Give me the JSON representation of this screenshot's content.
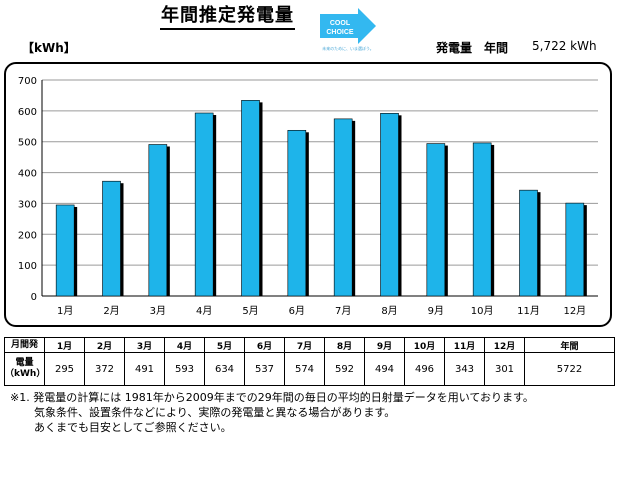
{
  "header": {
    "title": "年間推定発電量",
    "logo_line1": "COOL",
    "logo_line2": "CHOICE",
    "logo_caption": "未来のために、いま選ぼう。",
    "unit_label": "【kWh】",
    "annual_label": "発電量　年間",
    "annual_value": "5,722 kWh"
  },
  "chart_data": {
    "type": "bar",
    "categories": [
      "1月",
      "2月",
      "3月",
      "4月",
      "5月",
      "6月",
      "7月",
      "8月",
      "9月",
      "10月",
      "11月",
      "12月"
    ],
    "values": [
      295,
      372,
      491,
      593,
      634,
      537,
      574,
      592,
      494,
      496,
      343,
      301
    ],
    "ylim": [
      0,
      700
    ],
    "yticks": [
      0,
      100,
      200,
      300,
      400,
      500,
      600,
      700
    ],
    "grid": true,
    "bar_color": "#1EB4EA",
    "shadow_color": "#000000"
  },
  "table": {
    "row1_label": "月間発",
    "row2_label_line1": "電量",
    "row2_label_line2": "（kWh）",
    "months": [
      "1月",
      "2月",
      "3月",
      "4月",
      "5月",
      "6月",
      "7月",
      "8月",
      "9月",
      "10月",
      "11月",
      "12月"
    ],
    "values": [
      "295",
      "372",
      "491",
      "593",
      "634",
      "537",
      "574",
      "592",
      "494",
      "496",
      "343",
      "301"
    ],
    "annual_header": "年間",
    "annual_total": "5722"
  },
  "notes": {
    "line1": "※1. 発電量の計算には 1981年から2009年までの29年間の毎日の平均的日射量データを用いております。",
    "line2": "気象条件、設置条件などにより、実際の発電量と異なる場合があります。",
    "line3": "あくまでも目安としてご参照ください。"
  }
}
